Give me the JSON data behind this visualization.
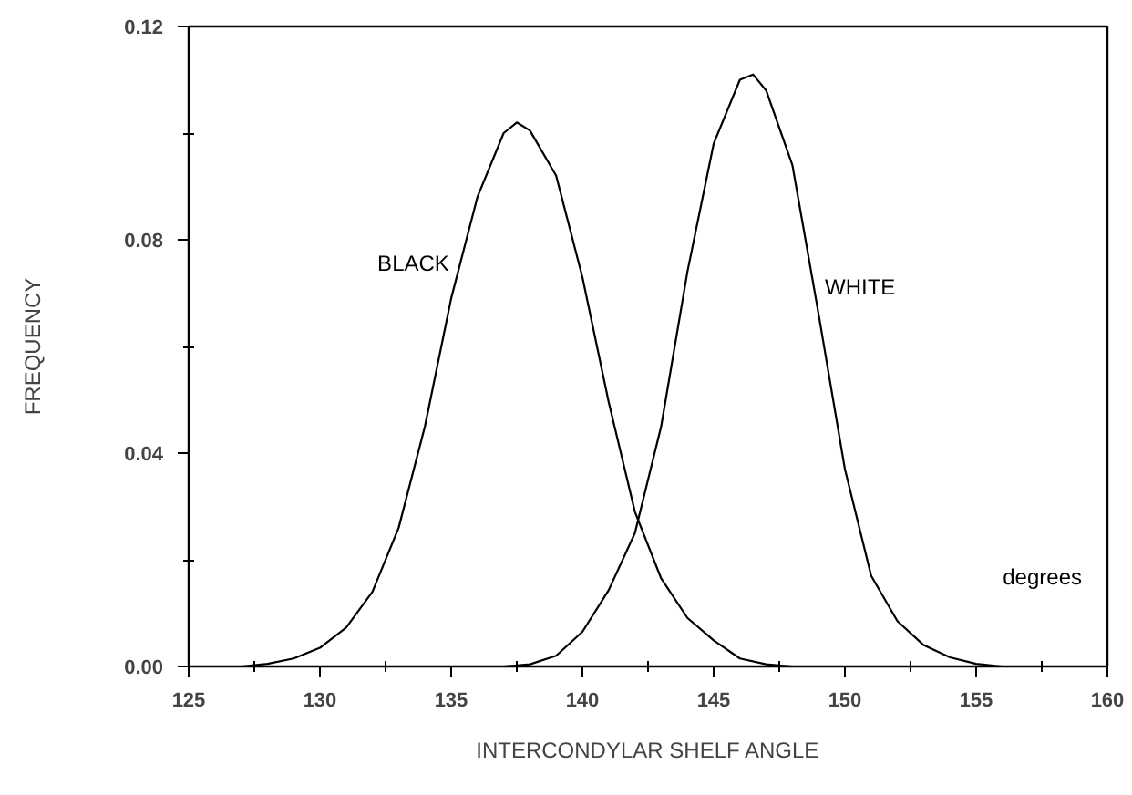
{
  "chart_data": {
    "type": "line",
    "xlabel": "INTERCONDYLAR SHELF ANGLE",
    "ylabel": "FREQUENCY",
    "xlim": [
      125,
      160
    ],
    "ylim": [
      0,
      0.12
    ],
    "xticks": [
      125,
      {
        "value": 127.5,
        "label": null
      },
      130,
      {
        "value": 132.5,
        "label": null
      },
      135,
      {
        "value": 137.5,
        "label": null
      },
      140,
      {
        "value": 142.5,
        "label": null
      },
      145,
      {
        "value": 147.5,
        "label": null
      },
      150,
      {
        "value": 152.5,
        "label": null
      },
      155,
      {
        "value": 157.5,
        "label": null
      },
      160
    ],
    "yticks": [
      {
        "value": 0,
        "label": "0.00"
      },
      {
        "value": 0.02,
        "label": null
      },
      0.04,
      {
        "value": 0.06,
        "label": null
      },
      0.08,
      {
        "value": 0.1,
        "label": null
      },
      0.12
    ],
    "grid": false,
    "legend": false,
    "line_style": "solid",
    "annotations": [
      "degrees"
    ],
    "series": [
      {
        "name": "BLACK",
        "color": "#000000",
        "x": [
          127,
          128,
          129,
          130,
          131,
          132,
          133,
          134,
          135,
          136,
          137,
          137.5,
          138,
          139,
          140,
          141,
          142,
          143,
          144,
          145,
          146,
          147,
          148
        ],
        "values": [
          0.0,
          0.0005,
          0.0015,
          0.0035,
          0.0073,
          0.014,
          0.026,
          0.045,
          0.069,
          0.088,
          0.1,
          0.102,
          0.1005,
          0.092,
          0.073,
          0.0496,
          0.029,
          0.0165,
          0.0091,
          0.0049,
          0.0015,
          0.0004,
          0.0
        ]
      },
      {
        "name": "WHITE",
        "color": "#000000",
        "x": [
          137,
          138,
          139,
          140,
          141,
          142,
          143,
          144,
          145,
          146,
          146.5,
          147,
          148,
          149,
          150,
          151,
          152,
          153,
          154,
          155,
          156
        ],
        "values": [
          0.0,
          0.0004,
          0.002,
          0.0065,
          0.0143,
          0.025,
          0.045,
          0.074,
          0.098,
          0.11,
          0.111,
          0.108,
          0.094,
          0.066,
          0.037,
          0.017,
          0.0085,
          0.004,
          0.0017,
          0.0005,
          0.0
        ]
      }
    ]
  }
}
